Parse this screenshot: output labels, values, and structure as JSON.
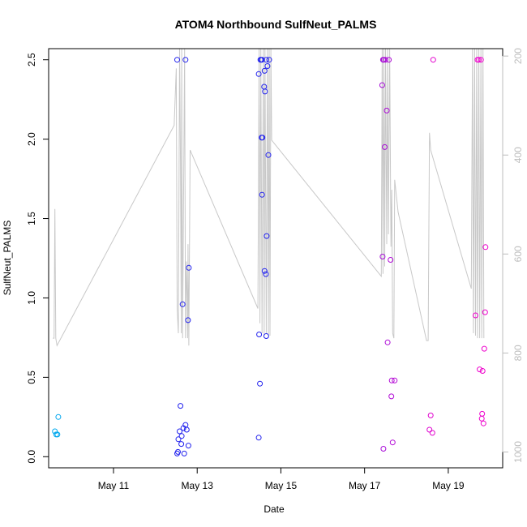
{
  "chart_data": {
    "type": "scatter",
    "title": "ATOM4 Northbound SulfNeut_PALMS",
    "xlabel": "Date",
    "ylabel": "SulfNeut_PALMS",
    "x_ticks": [
      "May 11",
      "May 13",
      "May 15",
      "May 17",
      "May 19"
    ],
    "x_tick_days": [
      11,
      13,
      15,
      17,
      19
    ],
    "xlim": [
      9.45,
      20.3
    ],
    "ylim": [
      -0.07,
      2.57
    ],
    "y_ticks": [
      "0.0",
      "0.5",
      "1.0",
      "1.5",
      "2.0",
      "2.5"
    ],
    "y_tick_values": [
      0,
      0.5,
      1.0,
      1.5,
      2.0,
      2.5
    ],
    "y2_ticks": [
      "200",
      "400",
      "600",
      "800",
      "1000"
    ],
    "y2_tick_values": [
      200,
      400,
      600,
      800,
      1000
    ],
    "y2lim": [
      1032,
      185
    ],
    "grid": false,
    "colors": {
      "points_start": "#00aaee",
      "points_mid": "#2222ee",
      "points_end": "#ee00cc",
      "altitude_line": "#c8c8c8",
      "axis": "#000000",
      "right_axis": "#bdbdbd"
    },
    "points": [
      [
        9.6,
        0.16
      ],
      [
        9.63,
        0.14
      ],
      [
        9.66,
        0.14
      ],
      [
        9.68,
        0.25
      ],
      [
        12.52,
        0.02
      ],
      [
        12.54,
        0.03
      ],
      [
        12.55,
        0.11
      ],
      [
        12.58,
        0.16
      ],
      [
        12.6,
        0.32
      ],
      [
        12.62,
        0.08
      ],
      [
        12.63,
        0.13
      ],
      [
        12.67,
        0.18
      ],
      [
        12.69,
        0.02
      ],
      [
        12.72,
        0.2
      ],
      [
        12.75,
        0.17
      ],
      [
        12.79,
        0.07
      ],
      [
        12.65,
        0.96
      ],
      [
        12.8,
        1.19
      ],
      [
        12.78,
        0.86
      ],
      [
        12.52,
        2.5
      ],
      [
        12.72,
        2.5
      ],
      [
        14.47,
        0.12
      ],
      [
        14.48,
        0.77
      ],
      [
        14.5,
        0.46
      ],
      [
        14.47,
        2.41
      ],
      [
        14.51,
        2.5
      ],
      [
        14.53,
        2.5
      ],
      [
        14.55,
        2.5
      ],
      [
        14.54,
        2.01
      ],
      [
        14.56,
        2.01
      ],
      [
        14.55,
        1.65
      ],
      [
        14.6,
        2.33
      ],
      [
        14.62,
        2.3
      ],
      [
        14.61,
        2.43
      ],
      [
        14.65,
        2.5
      ],
      [
        14.68,
        2.46
      ],
      [
        14.72,
        2.5
      ],
      [
        14.7,
        1.9
      ],
      [
        14.66,
        1.39
      ],
      [
        14.61,
        1.17
      ],
      [
        14.64,
        1.15
      ],
      [
        14.65,
        0.76
      ],
      [
        17.42,
        2.34
      ],
      [
        17.43,
        1.26
      ],
      [
        17.44,
        2.5
      ],
      [
        17.46,
        2.5
      ],
      [
        17.48,
        1.95
      ],
      [
        17.5,
        2.5
      ],
      [
        17.53,
        2.18
      ],
      [
        17.55,
        0.72
      ],
      [
        17.58,
        2.5
      ],
      [
        17.62,
        1.24
      ],
      [
        17.65,
        0.48
      ],
      [
        17.64,
        0.38
      ],
      [
        17.72,
        0.48
      ],
      [
        17.67,
        0.09
      ],
      [
        17.45,
        0.05
      ],
      [
        18.55,
        0.17
      ],
      [
        18.58,
        0.26
      ],
      [
        18.62,
        0.15
      ],
      [
        18.64,
        2.5
      ],
      [
        19.65,
        0.89
      ],
      [
        19.7,
        2.5
      ],
      [
        19.73,
        2.5
      ],
      [
        19.75,
        0.55
      ],
      [
        19.78,
        2.5
      ],
      [
        19.8,
        0.24
      ],
      [
        19.81,
        0.27
      ],
      [
        19.82,
        0.54
      ],
      [
        19.84,
        0.21
      ],
      [
        19.86,
        0.68
      ],
      [
        19.88,
        0.91
      ],
      [
        19.89,
        1.32
      ]
    ],
    "altitude_line": [
      [
        9.55,
        770
      ],
      [
        9.58,
        770
      ],
      [
        9.6,
        509
      ],
      [
        9.62,
        770
      ],
      [
        9.65,
        785
      ],
      [
        12.45,
        340
      ],
      [
        12.5,
        225
      ],
      [
        12.52,
        710
      ],
      [
        12.55,
        760
      ],
      [
        12.58,
        185
      ],
      [
        12.6,
        415
      ],
      [
        12.62,
        760
      ],
      [
        12.63,
        185
      ],
      [
        12.65,
        770
      ],
      [
        12.7,
        185
      ],
      [
        12.72,
        770
      ],
      [
        12.74,
        615
      ],
      [
        12.76,
        690
      ],
      [
        12.77,
        770
      ],
      [
        12.78,
        580
      ],
      [
        12.8,
        785
      ],
      [
        12.83,
        390
      ],
      [
        14.45,
        710
      ],
      [
        14.48,
        185
      ],
      [
        14.5,
        740
      ],
      [
        14.52,
        185
      ],
      [
        14.55,
        760
      ],
      [
        14.58,
        185
      ],
      [
        14.6,
        765
      ],
      [
        14.62,
        185
      ],
      [
        14.65,
        760
      ],
      [
        14.68,
        185
      ],
      [
        14.7,
        765
      ],
      [
        14.72,
        185
      ],
      [
        14.74,
        765
      ],
      [
        14.76,
        185
      ],
      [
        14.78,
        370
      ],
      [
        17.4,
        645
      ],
      [
        17.42,
        185
      ],
      [
        17.44,
        640
      ],
      [
        17.46,
        185
      ],
      [
        17.48,
        625
      ],
      [
        17.5,
        185
      ],
      [
        17.53,
        580
      ],
      [
        17.55,
        185
      ],
      [
        17.57,
        560
      ],
      [
        17.6,
        185
      ],
      [
        17.63,
        585
      ],
      [
        17.65,
        470
      ],
      [
        17.67,
        760
      ],
      [
        17.7,
        770
      ],
      [
        17.72,
        450
      ],
      [
        17.8,
        515
      ],
      [
        18.48,
        775
      ],
      [
        18.52,
        775
      ],
      [
        18.55,
        355
      ],
      [
        18.58,
        390
      ],
      [
        19.55,
        670
      ],
      [
        19.58,
        185
      ],
      [
        19.6,
        760
      ],
      [
        19.63,
        185
      ],
      [
        19.65,
        765
      ],
      [
        19.68,
        185
      ],
      [
        19.7,
        770
      ],
      [
        19.73,
        185
      ],
      [
        19.75,
        770
      ],
      [
        19.78,
        185
      ],
      [
        19.8,
        770
      ],
      [
        19.83,
        185
      ],
      [
        19.85,
        770
      ]
    ]
  }
}
